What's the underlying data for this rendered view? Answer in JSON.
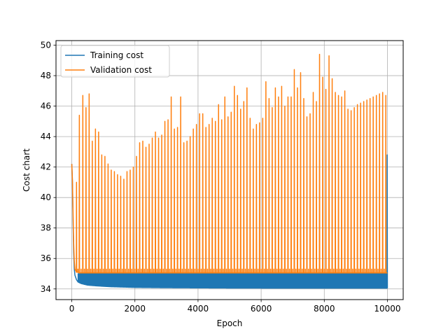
{
  "chart_data": {
    "type": "line",
    "title": "",
    "xlabel": "Epoch",
    "ylabel": "Cost chart",
    "xlim": [
      -500,
      10500
    ],
    "ylim": [
      33.3,
      50.3
    ],
    "xticks": [
      0,
      2000,
      4000,
      6000,
      8000,
      10000
    ],
    "yticks": [
      34,
      36,
      38,
      40,
      42,
      44,
      46,
      48,
      50
    ],
    "grid": true,
    "legend_position": "top-left",
    "series": [
      {
        "name": "Training cost",
        "color": "#1f77b4",
        "baseline": {
          "x": [
            0,
            20,
            40,
            60,
            80,
            100,
            150,
            200,
            300,
            500,
            800,
            1200,
            2000,
            3000,
            5000,
            7000,
            10000
          ],
          "y": [
            42.2,
            41.0,
            38.5,
            36.4,
            35.3,
            34.9,
            34.6,
            34.45,
            34.35,
            34.25,
            34.2,
            34.15,
            34.1,
            34.08,
            34.06,
            34.05,
            34.05
          ]
        },
        "spike_top": 35.0,
        "final_spike": 42.8
      },
      {
        "name": "Validation cost",
        "color": "#ff7f0e",
        "baseline": {
          "x": [
            0,
            20,
            40,
            60,
            80,
            100,
            150,
            200,
            10000
          ],
          "y": [
            42.2,
            41.2,
            39.0,
            37.0,
            35.8,
            35.3,
            35.1,
            35.05,
            35.05
          ]
        },
        "spikes": {
          "x": [
            150,
            240,
            350,
            450,
            550,
            650,
            750,
            850,
            950,
            1050,
            1150,
            1250,
            1350,
            1450,
            1550,
            1650,
            1750,
            1850,
            1950,
            2050,
            2150,
            2250,
            2350,
            2450,
            2550,
            2650,
            2750,
            2850,
            2950,
            3050,
            3150,
            3250,
            3350,
            3450,
            3550,
            3650,
            3750,
            3850,
            3950,
            4050,
            4150,
            4250,
            4350,
            4450,
            4550,
            4650,
            4750,
            4850,
            4950,
            5050,
            5150,
            5250,
            5350,
            5450,
            5550,
            5650,
            5750,
            5850,
            5950,
            6050,
            6150,
            6250,
            6350,
            6450,
            6550,
            6650,
            6750,
            6850,
            6950,
            7050,
            7150,
            7250,
            7350,
            7450,
            7550,
            7650,
            7750,
            7850,
            7950,
            8050,
            8150,
            8250,
            8350,
            8450,
            8550,
            8650,
            8750,
            8850,
            8950,
            9050,
            9150,
            9250,
            9350,
            9450,
            9550,
            9650,
            9750,
            9850,
            9950
          ],
          "y": [
            41.0,
            45.4,
            46.7,
            45.9,
            46.8,
            43.7,
            44.5,
            44.3,
            42.8,
            42.7,
            42.2,
            41.8,
            41.7,
            41.5,
            41.4,
            41.2,
            41.7,
            41.8,
            42.0,
            42.7,
            43.6,
            43.7,
            43.3,
            43.5,
            43.9,
            44.3,
            43.9,
            44.1,
            45.0,
            45.1,
            46.6,
            44.5,
            44.6,
            46.6,
            43.6,
            43.7,
            44.0,
            44.5,
            44.8,
            45.5,
            45.5,
            44.6,
            44.8,
            45.2,
            45.0,
            46.1,
            45.1,
            46.6,
            45.3,
            45.6,
            47.3,
            46.7,
            45.8,
            46.3,
            47.2,
            45.2,
            44.5,
            44.8,
            44.9,
            45.2,
            47.6,
            46.5,
            45.9,
            47.2,
            46.6,
            47.3,
            46.0,
            46.6,
            46.6,
            48.4,
            47.2,
            48.2,
            46.5,
            45.3,
            45.5,
            46.9,
            46.3,
            49.4,
            47.9,
            47.1,
            49.3,
            47.8,
            46.9,
            46.7,
            46.6,
            47.0,
            45.8,
            45.7,
            45.9,
            46.1,
            46.2,
            46.3,
            46.4,
            46.5,
            46.6,
            46.7,
            46.8,
            46.9,
            46.7
          ]
        }
      }
    ]
  }
}
